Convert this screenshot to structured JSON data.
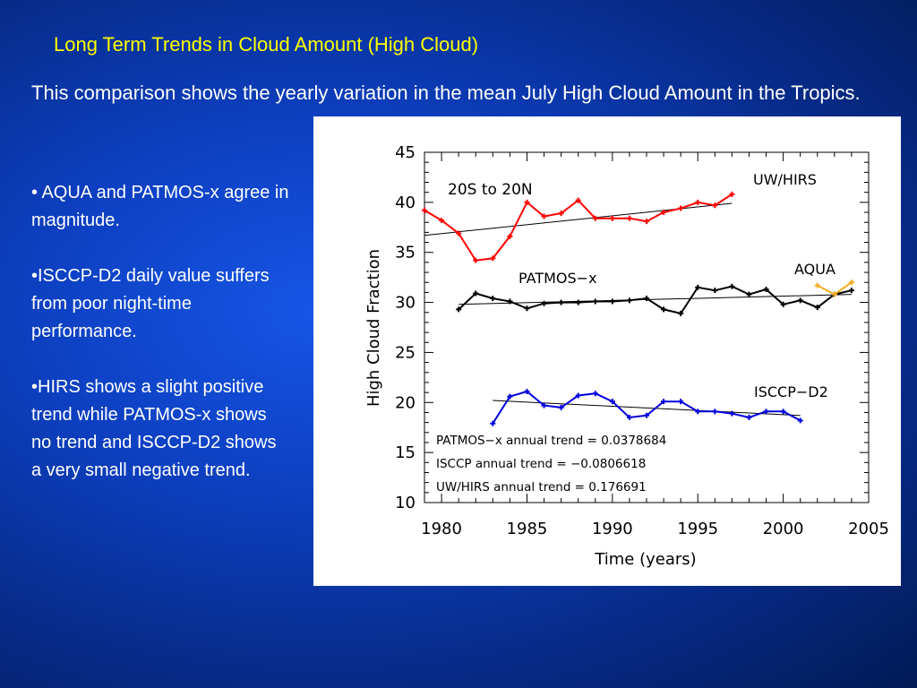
{
  "slide": {
    "title": "Long Term Trends in Cloud Amount (High Cloud)",
    "intro": "This comparison shows the yearly variation in the mean July High Cloud Amount in the Tropics.",
    "bullets": [
      "• AQUA and PATMOS-x agree in magnitude.",
      "•ISCCP-D2 daily value suffers from poor night-time performance.",
      "•HIRS shows a slight positive trend while PATMOS-x shows no trend and ISCCP-D2 shows a very small negative trend."
    ],
    "colors": {
      "title": "#ffff00",
      "text": "#ffffff",
      "background": "#0d3fc0"
    }
  },
  "chart_data": {
    "type": "line",
    "title": "",
    "xlabel": "Time (years)",
    "ylabel": "High Cloud Fraction",
    "xlim": [
      1979,
      2005
    ],
    "ylim": [
      10,
      45
    ],
    "xticks": [
      1980,
      1985,
      1990,
      1995,
      2000,
      2005
    ],
    "yticks": [
      10,
      15,
      20,
      25,
      30,
      35,
      40,
      45
    ],
    "grid": false,
    "region_label": "20S to 20N",
    "series": [
      {
        "name": "UW/HIRS",
        "color": "#ff0000",
        "x": [
          1979,
          1980,
          1981,
          1982,
          1983,
          1984,
          1985,
          1986,
          1987,
          1988,
          1989,
          1990,
          1991,
          1992,
          1993,
          1994,
          1995,
          1996,
          1997
        ],
        "y": [
          39.2,
          38.2,
          36.9,
          34.2,
          34.4,
          36.6,
          40.0,
          38.6,
          38.9,
          40.2,
          38.4,
          38.4,
          38.4,
          38.1,
          39.0,
          39.4,
          40.0,
          39.7,
          40.8
        ],
        "trend": [
          36.7,
          39.9
        ]
      },
      {
        "name": "PATMOS−x",
        "color": "#000000",
        "x": [
          1981,
          1982,
          1983,
          1984,
          1985,
          1986,
          1987,
          1988,
          1989,
          1990,
          1991,
          1992,
          1993,
          1994,
          1995,
          1996,
          1997,
          1998,
          1999,
          2000,
          2001,
          2002,
          2003,
          2004
        ],
        "y": [
          29.3,
          30.9,
          30.4,
          30.1,
          29.4,
          29.9,
          30.0,
          30.0,
          30.1,
          30.1,
          30.2,
          30.4,
          29.3,
          28.9,
          31.5,
          31.2,
          31.6,
          30.8,
          31.3,
          29.8,
          30.2,
          29.5,
          30.8,
          31.2
        ],
        "trend": [
          29.8,
          30.8
        ]
      },
      {
        "name": "AQUA",
        "color": "#f2ad22",
        "x": [
          2002,
          2003,
          2004
        ],
        "y": [
          31.7,
          30.8,
          32.0
        ]
      },
      {
        "name": "ISCCP−D2",
        "color": "#0000dd",
        "x": [
          1983,
          1984,
          1985,
          1986,
          1987,
          1988,
          1989,
          1990,
          1991,
          1992,
          1993,
          1994,
          1995,
          1996,
          1997,
          1998,
          1999,
          2000,
          2001
        ],
        "y": [
          17.9,
          20.6,
          21.1,
          19.7,
          19.5,
          20.7,
          20.9,
          20.1,
          18.5,
          18.7,
          20.1,
          20.1,
          19.1,
          19.1,
          18.9,
          18.5,
          19.1,
          19.1,
          18.2
        ],
        "trend": [
          20.2,
          18.7
        ]
      }
    ],
    "annotations": [
      "PATMOS−x annual trend = 0.0378684",
      "ISCCP annual trend = −0.0806618",
      "UW/HIRS annual trend = 0.176691"
    ]
  }
}
